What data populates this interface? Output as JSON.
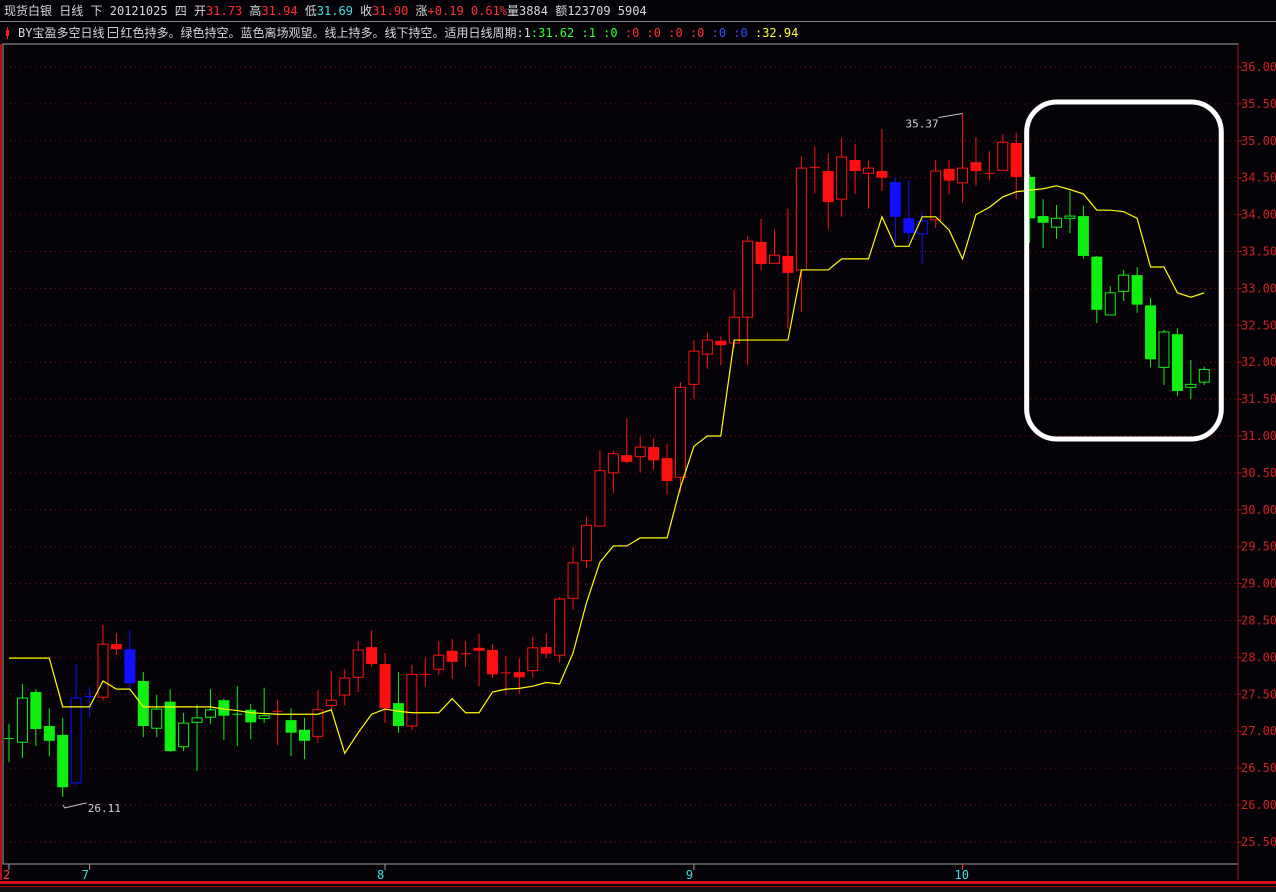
{
  "header": {
    "symbol": "现货白银",
    "period": "日线",
    "nav": "下",
    "date": "20121025",
    "weekday": "四",
    "open_label": "开",
    "open": "31.73",
    "high_label": "高",
    "high": "31.94",
    "low_label": "低",
    "low": "31.69",
    "close_label": "收",
    "close": "31.90",
    "change_label": "涨",
    "change": "+0.19",
    "change_pct": "0.61%",
    "volume_label": "量",
    "volume": "3884",
    "amount_label": "额",
    "amount": "123709 5904"
  },
  "indicator": {
    "name": "BY宝盈多空日线",
    "description": "红色持多。绿色持空。蓝色离场观望。线上持多。线下持空。适用日线周期:1",
    "values": [
      {
        "text": ":31.62",
        "color": "g"
      },
      {
        "text": ":1",
        "color": "g"
      },
      {
        "text": ":0",
        "color": "g"
      },
      {
        "text": ":0",
        "color": "r"
      },
      {
        "text": ":0",
        "color": "r"
      },
      {
        "text": ":0",
        "color": "r"
      },
      {
        "text": ":0",
        "color": "r"
      },
      {
        "text": ":0",
        "color": "b"
      },
      {
        "text": ":0",
        "color": "b"
      },
      {
        "text": ":32.94",
        "color": "y"
      }
    ]
  },
  "chart_data": {
    "type": "candlestick",
    "y_axis": {
      "range": [
        25.5,
        36.0
      ],
      "ticks": [
        "36.00",
        "35.50",
        "35.00",
        "34.50",
        "34.00",
        "33.50",
        "33.00",
        "32.50",
        "32.00",
        "31.50",
        "31.00",
        "30.50",
        "30.00",
        "29.50",
        "29.00",
        "28.50",
        "28.00",
        "27.50",
        "27.00",
        "26.50",
        "26.00",
        "25.50"
      ],
      "position": "right"
    },
    "x_axis": {
      "labels": [
        {
          "text": "2",
          "index": 0,
          "color": "#ff4040"
        },
        {
          "text": "7",
          "index": 6,
          "color": "#40e0e0"
        },
        {
          "text": "8",
          "index": 28,
          "color": "#40e0e0"
        },
        {
          "text": "9",
          "index": 51,
          "color": "#40e0e0"
        },
        {
          "text": "10",
          "index": 71,
          "color": "#40e0e0"
        }
      ]
    },
    "grid": true,
    "palette": {
      "r": "#ff1010",
      "g": "#10f010",
      "b": "#1010ff",
      "line": "#ffff00"
    },
    "ohlc": [
      [
        26.9,
        27.1,
        26.58,
        26.9
      ],
      [
        26.85,
        27.64,
        26.64,
        27.45
      ],
      [
        27.53,
        27.57,
        26.8,
        27.03
      ],
      [
        27.07,
        27.31,
        26.66,
        26.87
      ],
      [
        26.95,
        27.18,
        26.11,
        26.24
      ],
      [
        26.3,
        27.91,
        26.27,
        27.45
      ],
      [
        27.47,
        27.6,
        27.19,
        27.47
      ],
      [
        27.46,
        28.44,
        27.42,
        28.18
      ],
      [
        28.18,
        28.33,
        28.03,
        28.11
      ],
      [
        28.11,
        28.37,
        27.52,
        27.65
      ],
      [
        27.68,
        27.8,
        26.92,
        27.07
      ],
      [
        27.04,
        27.49,
        26.92,
        27.3
      ],
      [
        27.4,
        27.57,
        26.72,
        26.73
      ],
      [
        26.79,
        27.25,
        26.73,
        27.11
      ],
      [
        27.12,
        27.36,
        26.46,
        27.18
      ],
      [
        27.19,
        27.57,
        27.1,
        27.29
      ],
      [
        27.42,
        27.44,
        26.88,
        27.21
      ],
      [
        27.23,
        27.61,
        26.8,
        27.23
      ],
      [
        27.29,
        27.37,
        26.89,
        27.12
      ],
      [
        27.17,
        27.59,
        27.11,
        27.21
      ],
      [
        27.27,
        27.42,
        26.81,
        27.27
      ],
      [
        27.15,
        27.31,
        26.66,
        26.98
      ],
      [
        27.02,
        27.18,
        26.62,
        26.87
      ],
      [
        26.93,
        27.56,
        26.84,
        27.29
      ],
      [
        27.35,
        27.82,
        27.29,
        27.42
      ],
      [
        27.49,
        27.84,
        27.35,
        27.72
      ],
      [
        27.73,
        28.22,
        27.53,
        28.1
      ],
      [
        28.14,
        28.37,
        27.87,
        27.91
      ],
      [
        27.91,
        28.06,
        27.11,
        27.31
      ],
      [
        27.38,
        27.8,
        26.98,
        27.07
      ],
      [
        27.07,
        27.9,
        27.02,
        27.77
      ],
      [
        27.77,
        27.99,
        27.61,
        27.77
      ],
      [
        27.84,
        28.22,
        27.76,
        28.03
      ],
      [
        28.09,
        28.25,
        27.71,
        27.94
      ],
      [
        28.05,
        28.22,
        27.87,
        28.05
      ],
      [
        28.13,
        28.32,
        27.61,
        28.09
      ],
      [
        28.1,
        28.18,
        27.72,
        27.77
      ],
      [
        27.79,
        28.02,
        27.5,
        27.79
      ],
      [
        27.8,
        27.99,
        27.5,
        27.73
      ],
      [
        27.82,
        28.28,
        27.73,
        28.13
      ],
      [
        28.14,
        28.33,
        27.99,
        28.05
      ],
      [
        28.03,
        28.82,
        27.93,
        28.79
      ],
      [
        28.8,
        29.5,
        28.65,
        29.28
      ],
      [
        29.31,
        29.9,
        29.21,
        29.79
      ],
      [
        29.78,
        30.81,
        29.77,
        30.53
      ],
      [
        30.5,
        30.8,
        30.23,
        30.76
      ],
      [
        30.74,
        31.24,
        30.63,
        30.65
      ],
      [
        30.72,
        30.99,
        30.51,
        30.85
      ],
      [
        30.85,
        30.97,
        30.54,
        30.67
      ],
      [
        30.7,
        30.89,
        30.2,
        30.39
      ],
      [
        30.44,
        31.73,
        30.24,
        31.66
      ],
      [
        31.7,
        32.3,
        31.5,
        32.15
      ],
      [
        32.11,
        32.4,
        31.91,
        32.3
      ],
      [
        32.29,
        32.35,
        31.96,
        32.23
      ],
      [
        32.26,
        32.98,
        32.19,
        32.61
      ],
      [
        32.61,
        33.71,
        31.96,
        33.64
      ],
      [
        33.63,
        33.94,
        33.24,
        33.33
      ],
      [
        33.34,
        33.8,
        33.34,
        33.45
      ],
      [
        33.44,
        34.08,
        32.45,
        33.21
      ],
      [
        33.25,
        34.79,
        32.68,
        34.63
      ],
      [
        34.64,
        34.92,
        34.29,
        34.64
      ],
      [
        34.59,
        34.83,
        33.8,
        34.17
      ],
      [
        34.21,
        35.04,
        33.97,
        34.78
      ],
      [
        34.74,
        34.96,
        34.28,
        34.59
      ],
      [
        34.56,
        34.73,
        34.08,
        34.63
      ],
      [
        34.59,
        35.16,
        34.32,
        34.5
      ],
      [
        34.44,
        34.51,
        33.57,
        33.97
      ],
      [
        33.95,
        34.47,
        33.63,
        33.75
      ],
      [
        33.74,
        34.04,
        33.32,
        33.91
      ],
      [
        33.93,
        34.74,
        33.82,
        34.59
      ],
      [
        34.62,
        34.74,
        34.27,
        34.46
      ],
      [
        34.43,
        35.37,
        34.16,
        34.63
      ],
      [
        34.71,
        35.05,
        34.39,
        34.59
      ],
      [
        34.56,
        34.86,
        34.46,
        34.56
      ],
      [
        34.6,
        35.09,
        34.6,
        34.98
      ],
      [
        34.97,
        35.11,
        34.21,
        34.51
      ],
      [
        34.51,
        34.55,
        33.62,
        33.95
      ],
      [
        33.98,
        34.21,
        33.55,
        33.89
      ],
      [
        33.83,
        34.13,
        33.67,
        33.95
      ],
      [
        33.95,
        34.32,
        33.75,
        33.98
      ],
      [
        33.98,
        34.12,
        33.4,
        33.44
      ],
      [
        33.43,
        33.44,
        32.53,
        32.71
      ],
      [
        32.64,
        33.03,
        32.64,
        32.94
      ],
      [
        32.96,
        33.25,
        32.83,
        33.18
      ],
      [
        33.18,
        33.29,
        32.67,
        32.78
      ],
      [
        32.77,
        32.87,
        31.93,
        32.04
      ],
      [
        31.93,
        32.44,
        31.69,
        32.41
      ],
      [
        32.38,
        32.46,
        31.54,
        31.61
      ],
      [
        31.66,
        32.03,
        31.5,
        31.7
      ],
      [
        31.73,
        31.94,
        31.69,
        31.9
      ]
    ],
    "signal": [
      "g",
      "g",
      "g",
      "g",
      "g",
      "b",
      "b",
      "r",
      "r",
      "b",
      "g",
      "g",
      "g",
      "g",
      "g",
      "g",
      "g",
      "g",
      "g",
      "g",
      "r",
      "g",
      "g",
      "r",
      "r",
      "r",
      "r",
      "r",
      "r",
      "g",
      "r",
      "r",
      "r",
      "r",
      "r",
      "r",
      "r",
      "r",
      "r",
      "r",
      "r",
      "r",
      "r",
      "r",
      "r",
      "r",
      "r",
      "r",
      "r",
      "r",
      "r",
      "r",
      "r",
      "r",
      "r",
      "r",
      "r",
      "r",
      "r",
      "r",
      "r",
      "r",
      "r",
      "r",
      "r",
      "r",
      "b",
      "b",
      "b",
      "r",
      "r",
      "r",
      "r",
      "r",
      "r",
      "r",
      "g",
      "g",
      "g",
      "g",
      "g",
      "g",
      "g",
      "g",
      "g",
      "g",
      "g",
      "g",
      "g",
      "g"
    ],
    "line": [
      27.99,
      27.99,
      27.99,
      27.99,
      27.33,
      27.33,
      27.33,
      27.68,
      27.57,
      27.57,
      27.33,
      27.33,
      27.33,
      27.33,
      27.33,
      27.33,
      27.3,
      27.28,
      27.25,
      27.24,
      27.23,
      27.23,
      27.23,
      27.23,
      27.29,
      26.7,
      26.98,
      27.23,
      27.3,
      27.27,
      27.25,
      27.25,
      27.25,
      27.44,
      27.25,
      27.25,
      27.53,
      27.57,
      27.58,
      27.61,
      27.66,
      27.64,
      28.06,
      28.74,
      29.29,
      29.51,
      29.51,
      29.62,
      29.62,
      29.62,
      30.31,
      30.86,
      31.0,
      31.0,
      32.3,
      32.3,
      32.3,
      32.3,
      32.3,
      33.25,
      33.25,
      33.25,
      33.4,
      33.4,
      33.4,
      33.97,
      33.57,
      33.57,
      33.97,
      33.97,
      33.79,
      33.4,
      34.0,
      34.1,
      34.24,
      34.31,
      34.33,
      34.35,
      34.39,
      34.34,
      34.28,
      34.06,
      34.06,
      34.04,
      33.95,
      33.29,
      33.29,
      32.94,
      32.88,
      32.94
    ],
    "annotations": [
      {
        "text": "26.11",
        "index": 4,
        "price": 26.11,
        "kind": "low"
      },
      {
        "text": "35.37",
        "index": 71,
        "price": 35.37,
        "kind": "high"
      }
    ],
    "highlight_box": {
      "from_index": 76,
      "to_index": 89,
      "color": "#ffffff"
    }
  }
}
